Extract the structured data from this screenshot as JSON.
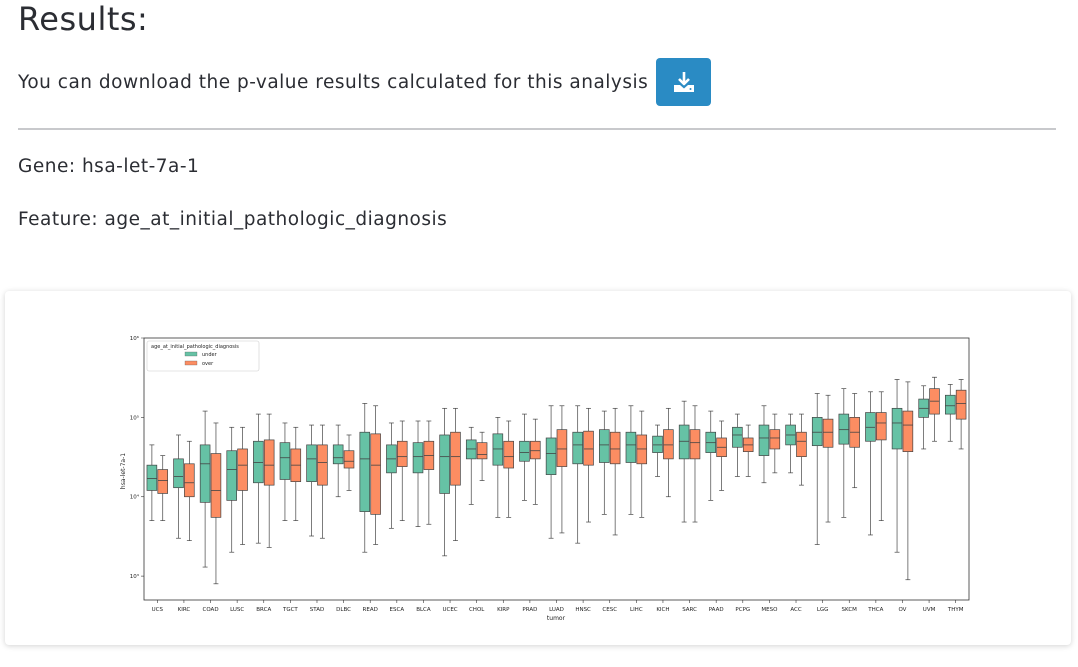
{
  "results": {
    "title": "Results:",
    "download_text": "You can download the p-value results calculated for this analysis",
    "download_icon": "download-icon"
  },
  "gene": {
    "label": "Gene:",
    "value": "hsa-let-7a-1"
  },
  "feature": {
    "label": "Feature:",
    "value": "age_at_initial_pathologic_diagnosis"
  },
  "chart_data": {
    "type": "box",
    "ylabel": "hsa-let-7a-1",
    "xlabel": "tumor",
    "yscale": "log",
    "ylim": [
      500,
      1000000
    ],
    "yticks": [
      {
        "value": 1000,
        "label": "10³"
      },
      {
        "value": 10000,
        "label": "10⁴"
      },
      {
        "value": 100000,
        "label": "10⁵"
      },
      {
        "value": 1000000,
        "label": "10⁶"
      }
    ],
    "legend": {
      "title": "age_at_initial_pathologic_diagnosis",
      "placement": "top-left",
      "entries": [
        {
          "name": "under",
          "color": "#66c2a5"
        },
        {
          "name": "over",
          "color": "#fc8d62"
        }
      ]
    },
    "categories": [
      "UCS",
      "KIRC",
      "COAD",
      "LUSC",
      "BRCA",
      "TGCT",
      "STAD",
      "DLBC",
      "READ",
      "ESCA",
      "BLCA",
      "UCEC",
      "CHOL",
      "KIRP",
      "PRAD",
      "LUAD",
      "HNSC",
      "CESC",
      "LIHC",
      "KICH",
      "SARC",
      "PAAD",
      "PCPG",
      "MESO",
      "ACC",
      "LGG",
      "SKCM",
      "THCA",
      "OV",
      "UVM",
      "THYM"
    ],
    "series": [
      {
        "name": "under",
        "color": "#66c2a5",
        "boxes": [
          {
            "lo": 5000,
            "q1": 12000,
            "med": 17000,
            "q3": 25000,
            "hi": 45000
          },
          {
            "lo": 3000,
            "q1": 13000,
            "med": 18000,
            "q3": 30000,
            "hi": 60000
          },
          {
            "lo": 1300,
            "q1": 8500,
            "med": 26000,
            "q3": 45000,
            "hi": 120000
          },
          {
            "lo": 2000,
            "q1": 9000,
            "med": 22000,
            "q3": 38000,
            "hi": 75000
          },
          {
            "lo": 2600,
            "q1": 15000,
            "med": 27000,
            "q3": 50000,
            "hi": 110000
          },
          {
            "lo": 5000,
            "q1": 16500,
            "med": 31000,
            "q3": 48000,
            "hi": 85000
          },
          {
            "lo": 3200,
            "q1": 15500,
            "med": 30000,
            "q3": 45000,
            "hi": 80000
          },
          {
            "lo": 10000,
            "q1": 26000,
            "med": 31000,
            "q3": 45000,
            "hi": 80000
          },
          {
            "lo": 2000,
            "q1": 6500,
            "med": 30000,
            "q3": 65000,
            "hi": 150000
          },
          {
            "lo": 4000,
            "q1": 20000,
            "med": 30000,
            "q3": 45000,
            "hi": 85000
          },
          {
            "lo": 4200,
            "q1": 20000,
            "med": 32000,
            "q3": 48000,
            "hi": 90000
          },
          {
            "lo": 1800,
            "q1": 11000,
            "med": 32000,
            "q3": 60000,
            "hi": 130000
          },
          {
            "lo": 8000,
            "q1": 30000,
            "med": 40000,
            "q3": 52000,
            "hi": 75000
          },
          {
            "lo": 5500,
            "q1": 25000,
            "med": 40000,
            "q3": 62000,
            "hi": 100000
          },
          {
            "lo": 9000,
            "q1": 28000,
            "med": 36000,
            "q3": 50000,
            "hi": 110000
          },
          {
            "lo": 3000,
            "q1": 19000,
            "med": 35000,
            "q3": 55000,
            "hi": 140000
          },
          {
            "lo": 2600,
            "q1": 26000,
            "med": 45000,
            "q3": 65000,
            "hi": 140000
          },
          {
            "lo": 6000,
            "q1": 27000,
            "med": 45000,
            "q3": 70000,
            "hi": 120000
          },
          {
            "lo": 6000,
            "q1": 27000,
            "med": 45000,
            "q3": 65000,
            "hi": 140000
          },
          {
            "lo": 18000,
            "q1": 36000,
            "med": 45000,
            "q3": 58000,
            "hi": 80000
          },
          {
            "lo": 4800,
            "q1": 30000,
            "med": 50000,
            "q3": 80000,
            "hi": 160000
          },
          {
            "lo": 9000,
            "q1": 36000,
            "med": 48000,
            "q3": 65000,
            "hi": 120000
          },
          {
            "lo": 18000,
            "q1": 42000,
            "med": 60000,
            "q3": 75000,
            "hi": 110000
          },
          {
            "lo": 15000,
            "q1": 33000,
            "med": 55000,
            "q3": 80000,
            "hi": 140000
          },
          {
            "lo": 20000,
            "q1": 45000,
            "med": 60000,
            "q3": 80000,
            "hi": 110000
          },
          {
            "lo": 2500,
            "q1": 44000,
            "med": 65000,
            "q3": 100000,
            "hi": 200000
          },
          {
            "lo": 5500,
            "q1": 46000,
            "med": 70000,
            "q3": 110000,
            "hi": 230000
          },
          {
            "lo": 3300,
            "q1": 50000,
            "med": 75000,
            "q3": 115000,
            "hi": 210000
          },
          {
            "lo": 2000,
            "q1": 40000,
            "med": 85000,
            "q3": 130000,
            "hi": 300000
          },
          {
            "lo": 40000,
            "q1": 100000,
            "med": 130000,
            "q3": 170000,
            "hi": 250000
          },
          {
            "lo": 50000,
            "q1": 110000,
            "med": 140000,
            "q3": 190000,
            "hi": 260000
          }
        ]
      },
      {
        "name": "over",
        "color": "#fc8d62",
        "boxes": [
          {
            "lo": 5000,
            "q1": 11000,
            "med": 16000,
            "q3": 22000,
            "hi": 33000
          },
          {
            "lo": 2800,
            "q1": 10000,
            "med": 15000,
            "q3": 26000,
            "hi": 50000
          },
          {
            "lo": 800,
            "q1": 5500,
            "med": 12000,
            "q3": 35000,
            "hi": 85000
          },
          {
            "lo": 2500,
            "q1": 12000,
            "med": 25000,
            "q3": 40000,
            "hi": 75000
          },
          {
            "lo": 2300,
            "q1": 14000,
            "med": 25000,
            "q3": 52000,
            "hi": 110000
          },
          {
            "lo": 5000,
            "q1": 15500,
            "med": 25000,
            "q3": 40000,
            "hi": 75000
          },
          {
            "lo": 3000,
            "q1": 14000,
            "med": 27000,
            "q3": 45000,
            "hi": 80000
          },
          {
            "lo": 12000,
            "q1": 23000,
            "med": 28000,
            "q3": 38000,
            "hi": 60000
          },
          {
            "lo": 2500,
            "q1": 6000,
            "med": 25000,
            "q3": 62000,
            "hi": 140000
          },
          {
            "lo": 5000,
            "q1": 24000,
            "med": 32000,
            "q3": 50000,
            "hi": 90000
          },
          {
            "lo": 4500,
            "q1": 22000,
            "med": 33000,
            "q3": 50000,
            "hi": 90000
          },
          {
            "lo": 2800,
            "q1": 14000,
            "med": 32000,
            "q3": 65000,
            "hi": 130000
          },
          {
            "lo": 16000,
            "q1": 30000,
            "med": 34000,
            "q3": 48000,
            "hi": 65000
          },
          {
            "lo": 5500,
            "q1": 23000,
            "med": 32000,
            "q3": 50000,
            "hi": 90000
          },
          {
            "lo": 8000,
            "q1": 30000,
            "med": 38000,
            "q3": 50000,
            "hi": 95000
          },
          {
            "lo": 3500,
            "q1": 24000,
            "med": 40000,
            "q3": 70000,
            "hi": 140000
          },
          {
            "lo": 4800,
            "q1": 25000,
            "med": 40000,
            "q3": 67000,
            "hi": 130000
          },
          {
            "lo": 3300,
            "q1": 26000,
            "med": 40000,
            "q3": 65000,
            "hi": 130000
          },
          {
            "lo": 5500,
            "q1": 26000,
            "med": 40000,
            "q3": 60000,
            "hi": 120000
          },
          {
            "lo": 10000,
            "q1": 30000,
            "med": 45000,
            "q3": 70000,
            "hi": 130000
          },
          {
            "lo": 4800,
            "q1": 30000,
            "med": 48000,
            "q3": 70000,
            "hi": 140000
          },
          {
            "lo": 12000,
            "q1": 32000,
            "med": 42000,
            "q3": 55000,
            "hi": 90000
          },
          {
            "lo": 18000,
            "q1": 37000,
            "med": 45000,
            "q3": 55000,
            "hi": 80000
          },
          {
            "lo": 20000,
            "q1": 40000,
            "med": 55000,
            "q3": 70000,
            "hi": 110000
          },
          {
            "lo": 14000,
            "q1": 32000,
            "med": 50000,
            "q3": 65000,
            "hi": 110000
          },
          {
            "lo": 4800,
            "q1": 42000,
            "med": 65000,
            "q3": 95000,
            "hi": 190000
          },
          {
            "lo": 13000,
            "q1": 42000,
            "med": 65000,
            "q3": 100000,
            "hi": 200000
          },
          {
            "lo": 5000,
            "q1": 52000,
            "med": 85000,
            "q3": 115000,
            "hi": 210000
          },
          {
            "lo": 900,
            "q1": 37000,
            "med": 80000,
            "q3": 120000,
            "hi": 280000
          },
          {
            "lo": 50000,
            "q1": 110000,
            "med": 160000,
            "q3": 230000,
            "hi": 320000
          },
          {
            "lo": 40000,
            "q1": 95000,
            "med": 150000,
            "q3": 220000,
            "hi": 300000
          }
        ]
      }
    ]
  }
}
